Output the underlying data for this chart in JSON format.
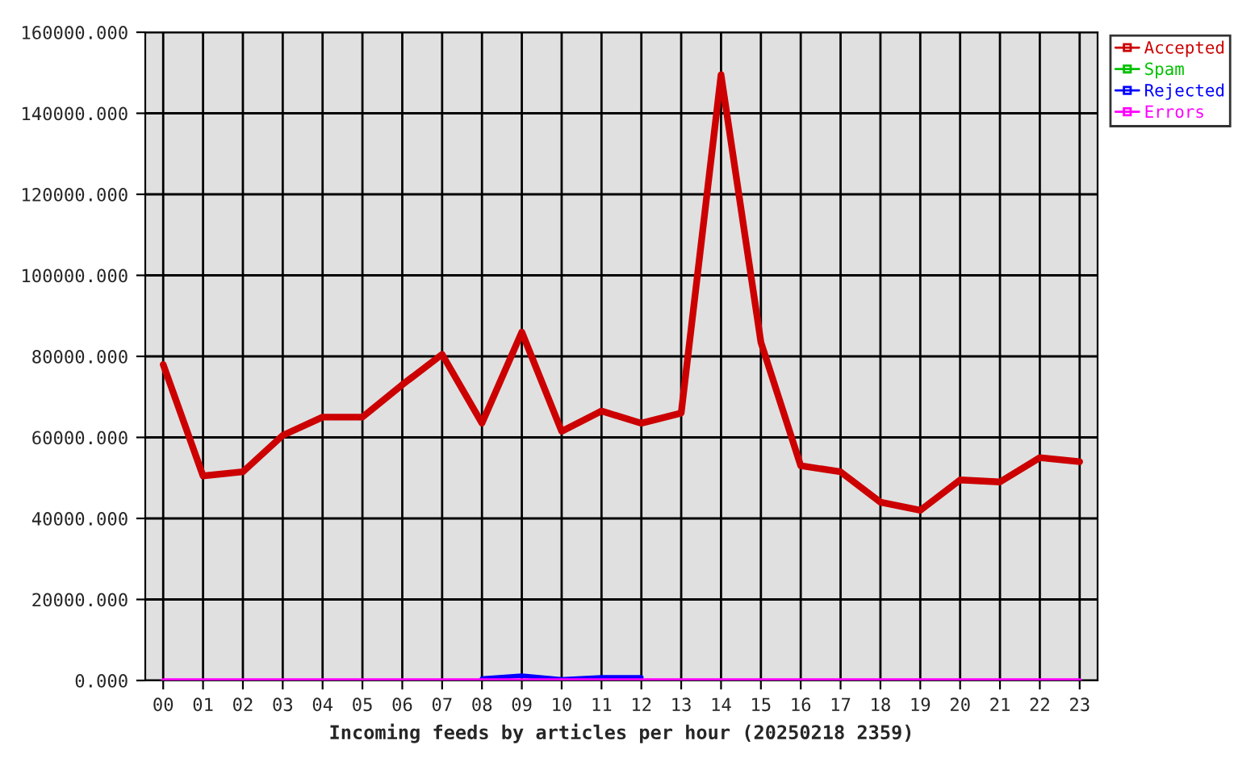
{
  "chart_data": {
    "type": "line",
    "xlabel": "Incoming feeds by articles per hour (20250218 2359)",
    "categories": [
      "00",
      "01",
      "02",
      "03",
      "04",
      "05",
      "06",
      "07",
      "08",
      "09",
      "10",
      "11",
      "12",
      "13",
      "14",
      "15",
      "16",
      "17",
      "18",
      "19",
      "20",
      "21",
      "22",
      "23"
    ],
    "series": [
      {
        "name": "Accepted",
        "color": "#cc0000",
        "values": [
          78000,
          50500,
          51500,
          60500,
          65000,
          65000,
          73000,
          80500,
          63500,
          86000,
          61500,
          66500,
          63500,
          66000,
          149500,
          83500,
          53000,
          51500,
          44000,
          42000,
          49500,
          49000,
          55000,
          54000
        ]
      },
      {
        "name": "Spam",
        "color": "#00c000",
        "values": [
          null,
          null,
          null,
          null,
          null,
          null,
          null,
          null,
          null,
          null,
          null,
          null,
          null,
          null,
          null,
          null,
          null,
          null,
          null,
          null,
          null,
          null,
          null,
          null
        ]
      },
      {
        "name": "Rejected",
        "color": "#0000ff",
        "values": [
          null,
          null,
          null,
          null,
          null,
          null,
          null,
          null,
          500,
          1200,
          300,
          800,
          800,
          null,
          null,
          null,
          null,
          null,
          null,
          null,
          null,
          null,
          null,
          null
        ]
      },
      {
        "name": "Errors",
        "color": "#ff00ff",
        "values": [
          0,
          0,
          0,
          0,
          0,
          0,
          0,
          0,
          0,
          0,
          0,
          0,
          0,
          0,
          0,
          0,
          0,
          0,
          0,
          0,
          0,
          0,
          0,
          0
        ]
      }
    ],
    "ylim": [
      0,
      160000
    ],
    "yticks": [
      {
        "value": 0,
        "label": "0.000"
      },
      {
        "value": 20000,
        "label": "20000.000"
      },
      {
        "value": 40000,
        "label": "40000.000"
      },
      {
        "value": 60000,
        "label": "60000.000"
      },
      {
        "value": 80000,
        "label": "80000.000"
      },
      {
        "value": 100000,
        "label": "100000.000"
      },
      {
        "value": 120000,
        "label": "120000.000"
      },
      {
        "value": 140000,
        "label": "140000.000"
      },
      {
        "value": 160000,
        "label": "160000.000"
      }
    ],
    "grid": true,
    "legend": "top right",
    "marker": "none",
    "line_style": "solid"
  }
}
